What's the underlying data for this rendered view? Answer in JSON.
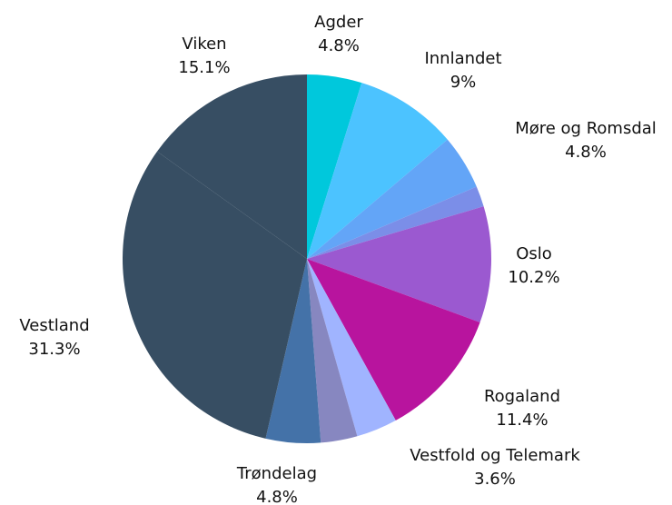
{
  "chart_data": {
    "type": "pie",
    "categories": [
      "Agder",
      "Innlandet",
      "Møre og Romsdal",
      null,
      "Oslo",
      "Rogaland",
      "Vestfold og Telemark",
      null,
      "Trøndelag",
      "Vestland",
      "Viken"
    ],
    "values": [
      4.8,
      9,
      4.8,
      1.8,
      10.2,
      11.4,
      3.6,
      3.2,
      4.8,
      31.3,
      15.1
    ],
    "value_labels": [
      "4.8%",
      "9%",
      "4.8%",
      null,
      "10.2%",
      "11.4%",
      "3.6%",
      null,
      "4.8%",
      "31.3%",
      "15.1%"
    ],
    "colors": [
      "#00c8dc",
      "#4cc3ff",
      "#63a5f7",
      "#7b8ee8",
      "#9b59d0",
      "#b8149e",
      "#a0b4ff",
      "#8787c0",
      "#4472a8",
      "#374e63",
      "#374e63"
    ]
  }
}
